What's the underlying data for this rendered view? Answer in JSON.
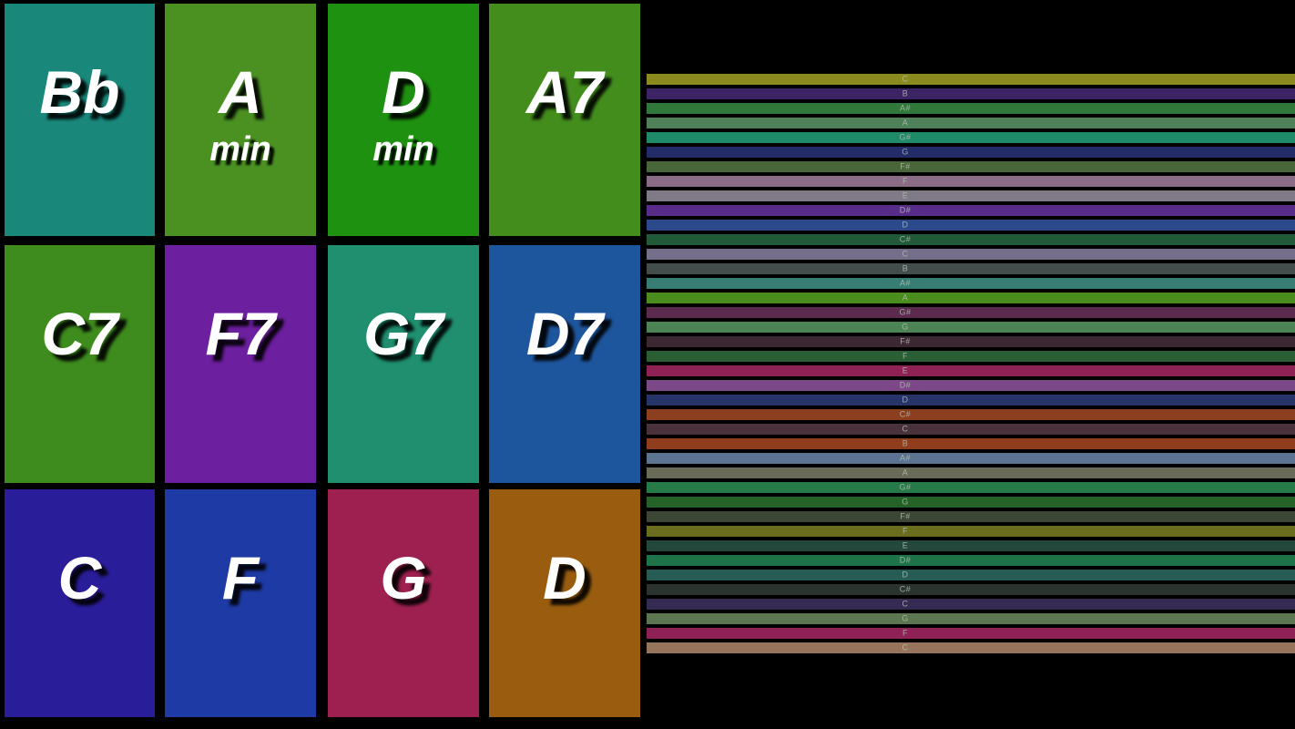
{
  "app": {
    "background": "#000000",
    "pad_text_color": "#ffffff",
    "pad_shadow_color": "#000000"
  },
  "chord_pads": {
    "pads": [
      {
        "label": "Bb",
        "sub": "",
        "color": "#19887B"
      },
      {
        "label": "A",
        "sub": "min",
        "color": "#4A9122"
      },
      {
        "label": "D",
        "sub": "min",
        "color": "#1E9110"
      },
      {
        "label": "A7",
        "sub": "",
        "color": "#438D1D"
      },
      {
        "label": "C7",
        "sub": "",
        "color": "#3E8C1D"
      },
      {
        "label": "F7",
        "sub": "",
        "color": "#6C1F9E"
      },
      {
        "label": "G7",
        "sub": "",
        "color": "#1F8F70"
      },
      {
        "label": "D7",
        "sub": "",
        "color": "#1E569E"
      },
      {
        "label": "C",
        "sub": "",
        "color": "#2A1D9A"
      },
      {
        "label": "F",
        "sub": "",
        "color": "#1E3AA4"
      },
      {
        "label": "G",
        "sub": "",
        "color": "#9E2050"
      },
      {
        "label": "D",
        "sub": "",
        "color": "#9A5D10"
      }
    ]
  },
  "note_lanes": {
    "label_color": "#B2BEB2",
    "lanes": [
      {
        "note": "C",
        "color": "#8A8A1E"
      },
      {
        "note": "B",
        "color": "#3C2363"
      },
      {
        "note": "A#",
        "color": "#31793B"
      },
      {
        "note": "A",
        "color": "#4E8159"
      },
      {
        "note": "G#",
        "color": "#1F8A68"
      },
      {
        "note": "G",
        "color": "#232B68"
      },
      {
        "note": "F#",
        "color": "#49663A"
      },
      {
        "note": "F",
        "color": "#8A6C87"
      },
      {
        "note": "E",
        "color": "#7F7A85"
      },
      {
        "note": "D#",
        "color": "#5A2C8A"
      },
      {
        "note": "D",
        "color": "#2A4A8C"
      },
      {
        "note": "C#",
        "color": "#205A38"
      },
      {
        "note": "C",
        "color": "#746E8A"
      },
      {
        "note": "B",
        "color": "#434E4C"
      },
      {
        "note": "A#",
        "color": "#377D74"
      },
      {
        "note": "A",
        "color": "#4A8C1E"
      },
      {
        "note": "G#",
        "color": "#5C2A4E"
      },
      {
        "note": "G",
        "color": "#4D8456"
      },
      {
        "note": "F#",
        "color": "#3C2833"
      },
      {
        "note": "F",
        "color": "#2A5E34"
      },
      {
        "note": "E",
        "color": "#8E2254"
      },
      {
        "note": "D#",
        "color": "#7C4888"
      },
      {
        "note": "D",
        "color": "#263468"
      },
      {
        "note": "C#",
        "color": "#8C3F1E"
      },
      {
        "note": "C",
        "color": "#4A323C"
      },
      {
        "note": "B",
        "color": "#8E3E1C"
      },
      {
        "note": "A#",
        "color": "#5C7492"
      },
      {
        "note": "A",
        "color": "#6A6A58"
      },
      {
        "note": "G#",
        "color": "#257A48"
      },
      {
        "note": "G",
        "color": "#256228"
      },
      {
        "note": "F#",
        "color": "#3C4634"
      },
      {
        "note": "F",
        "color": "#6A6C1E"
      },
      {
        "note": "E",
        "color": "#24493C"
      },
      {
        "note": "D#",
        "color": "#1E7448"
      },
      {
        "note": "D",
        "color": "#275C54"
      },
      {
        "note": "C#",
        "color": "#2A332E"
      },
      {
        "note": "C",
        "color": "#342A52"
      },
      {
        "note": "G",
        "color": "#5C7652"
      },
      {
        "note": "F",
        "color": "#8E2156"
      },
      {
        "note": "C",
        "color": "#96755C"
      }
    ]
  }
}
